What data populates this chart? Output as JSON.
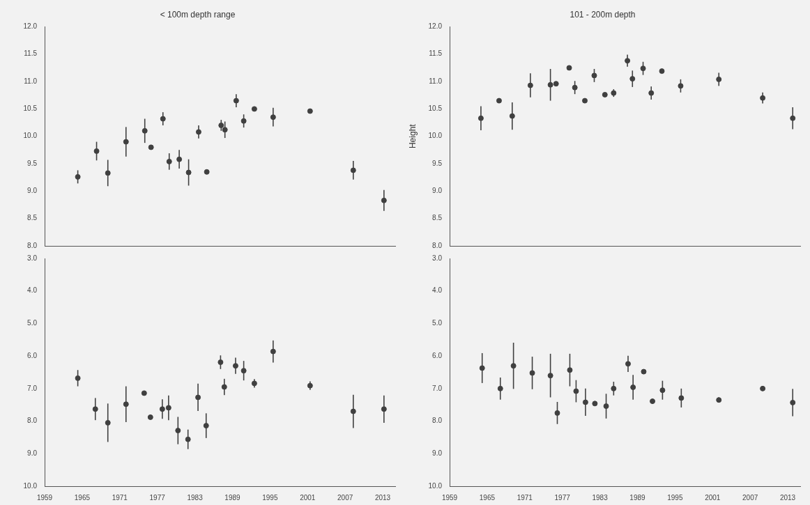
{
  "chart_data": [
    {
      "type": "scatter",
      "title": "< 100m depth range",
      "x": [
        1964.3,
        1967.3,
        1969.1,
        1972.0,
        1975.0,
        1976.0,
        1977.9,
        1978.9,
        1980.5,
        1982.0,
        1983.6,
        1984.9,
        1987.2,
        1987.8,
        1989.6,
        1990.8,
        1992.5,
        1995.5,
        2001.4,
        2008.3,
        2013.2
      ],
      "values": [
        9.26,
        9.73,
        9.33,
        9.9,
        10.1,
        9.8,
        10.32,
        9.54,
        9.58,
        9.34,
        10.08,
        9.35,
        10.2,
        10.12,
        10.65,
        10.28,
        10.5,
        10.35,
        10.46,
        9.38,
        8.83
      ],
      "errors": [
        0.12,
        0.17,
        0.24,
        0.27,
        0.22,
        null,
        0.12,
        0.15,
        0.17,
        0.24,
        0.12,
        null,
        0.1,
        0.15,
        0.12,
        0.12,
        null,
        0.17,
        null,
        0.17,
        0.19
      ],
      "color": "#404040",
      "marker": "circle",
      "xlim": [
        1959,
        2015
      ],
      "xticks": [
        1959,
        1965,
        1971,
        1977,
        1983,
        1989,
        1995,
        2001,
        2007,
        2013
      ],
      "ylim": [
        8,
        12
      ],
      "yticks": [
        {
          "value": 8,
          "label": "8.0"
        },
        {
          "value": 8.5,
          "label": "8.5"
        },
        {
          "value": 9,
          "label": "9.0"
        },
        {
          "value": 9.5,
          "label": "9.5"
        },
        {
          "value": 10,
          "label": "10.0"
        },
        {
          "value": 10.5,
          "label": "10.5"
        },
        {
          "value": 11,
          "label": "11.0"
        },
        {
          "value": 11.5,
          "label": "11.5"
        },
        {
          "value": 12,
          "label": "12.0"
        }
      ],
      "tick_labels": "y",
      "grid": false,
      "legend": false
    },
    {
      "type": "scatter",
      "title": "101 - 200m depth",
      "ylabel": "Height",
      "x": [
        1964.0,
        1966.9,
        1969.0,
        1971.9,
        1975.1,
        1976.0,
        1978.1,
        1979.0,
        1980.6,
        1982.1,
        1983.8,
        1985.2,
        1987.4,
        1988.2,
        1989.9,
        1991.2,
        1992.9,
        1995.9,
        2002.0,
        2009.0,
        2013.8
      ],
      "values": [
        10.33,
        10.65,
        10.37,
        10.93,
        10.94,
        10.96,
        11.25,
        10.89,
        10.65,
        11.11,
        10.76,
        10.79,
        11.38,
        11.05,
        11.24,
        10.79,
        11.19,
        10.92,
        11.04,
        10.7,
        10.33
      ],
      "errors": [
        0.22,
        null,
        0.25,
        0.22,
        0.29,
        null,
        null,
        0.12,
        null,
        0.12,
        null,
        0.07,
        0.11,
        0.15,
        0.12,
        0.12,
        null,
        0.12,
        0.12,
        0.1,
        0.2
      ],
      "color": "#404040",
      "marker": "circle",
      "xlim": [
        1959,
        2015
      ],
      "xticks": [
        1959,
        1965,
        1971,
        1977,
        1983,
        1989,
        1995,
        2001,
        2007,
        2013
      ],
      "ylim": [
        8,
        12
      ],
      "yticks": [
        {
          "value": 8,
          "label": "8.0"
        },
        {
          "value": 8.5,
          "label": "8.5"
        },
        {
          "value": 9,
          "label": "9.0"
        },
        {
          "value": 9.5,
          "label": "9.5"
        },
        {
          "value": 10,
          "label": "10.0"
        },
        {
          "value": 10.5,
          "label": "10.5"
        },
        {
          "value": 11,
          "label": "11.0"
        },
        {
          "value": 11.5,
          "label": "11.5"
        },
        {
          "value": 12,
          "label": "12.0"
        }
      ],
      "tick_labels": "y",
      "grid": false,
      "legend": false
    },
    {
      "type": "scatter",
      "x": [
        1964.3,
        1967.1,
        1969.1,
        1972.0,
        1974.9,
        1975.9,
        1977.8,
        1978.8,
        1980.3,
        1981.9,
        1983.5,
        1984.8,
        1987.1,
        1987.7,
        1989.5,
        1990.8,
        1992.5,
        1995.5,
        2001.4,
        2008.3,
        2013.2
      ],
      "values": [
        6.68,
        7.63,
        8.05,
        7.48,
        7.14,
        7.88,
        7.63,
        7.59,
        8.29,
        8.56,
        7.27,
        8.14,
        6.19,
        6.95,
        6.3,
        6.45,
        6.84,
        5.86,
        6.91,
        7.7,
        7.63
      ],
      "errors": [
        0.25,
        0.34,
        0.59,
        0.55,
        null,
        null,
        0.3,
        0.38,
        0.42,
        0.3,
        0.42,
        0.38,
        0.21,
        0.25,
        0.25,
        0.3,
        0.13,
        0.34,
        0.13,
        0.51,
        0.42
      ],
      "color": "#404040",
      "marker": "circle",
      "xlim": [
        1959,
        2015
      ],
      "xticks": [
        1959,
        1965,
        1971,
        1977,
        1983,
        1989,
        1995,
        2001,
        2007,
        2013
      ],
      "ylim": [
        10,
        3
      ],
      "yticks": [
        {
          "value": 3,
          "label": "3.0"
        },
        {
          "value": 4,
          "label": "4.0"
        },
        {
          "value": 5,
          "label": "5.0"
        },
        {
          "value": 6,
          "label": "6.0"
        },
        {
          "value": 7,
          "label": "7.0"
        },
        {
          "value": 8,
          "label": "8.0"
        },
        {
          "value": 9,
          "label": "9.0"
        },
        {
          "value": 10,
          "label": "10.0"
        }
      ],
      "grid": false,
      "legend": false
    },
    {
      "type": "scatter",
      "x": [
        1964.2,
        1967.1,
        1969.2,
        1972.2,
        1975.1,
        1976.2,
        1978.2,
        1979.2,
        1980.7,
        1982.2,
        1984.0,
        1985.2,
        1987.5,
        1988.3,
        1990.0,
        1991.4,
        1993.0,
        1996.0,
        2002.0,
        2009.0,
        2013.8
      ],
      "values": [
        6.37,
        7.0,
        6.3,
        6.52,
        6.6,
        7.75,
        6.43,
        7.08,
        7.42,
        7.46,
        7.54,
        7.0,
        6.24,
        6.96,
        6.48,
        7.39,
        7.05,
        7.29,
        7.35,
        7.0,
        7.43
      ],
      "errors": [
        0.46,
        0.34,
        0.71,
        0.5,
        0.67,
        0.34,
        0.5,
        0.34,
        0.42,
        null,
        0.38,
        0.21,
        0.25,
        0.38,
        null,
        null,
        0.29,
        0.29,
        0.08,
        null,
        0.42
      ],
      "color": "#404040",
      "marker": "circle",
      "xlim": [
        1959,
        2015
      ],
      "xticks": [
        1959,
        1965,
        1971,
        1977,
        1983,
        1989,
        1995,
        2001,
        2007,
        2013
      ],
      "ylim": [
        10,
        3
      ],
      "yticks": [
        {
          "value": 3,
          "label": "3.0"
        },
        {
          "value": 4,
          "label": "4.0"
        },
        {
          "value": 5,
          "label": "5.0"
        },
        {
          "value": 6,
          "label": "6.0"
        },
        {
          "value": 7,
          "label": "7.0"
        },
        {
          "value": 8,
          "label": "8.0"
        },
        {
          "value": 9,
          "label": "9.0"
        },
        {
          "value": 10,
          "label": "10.0"
        }
      ],
      "grid": false,
      "legend": false
    }
  ]
}
